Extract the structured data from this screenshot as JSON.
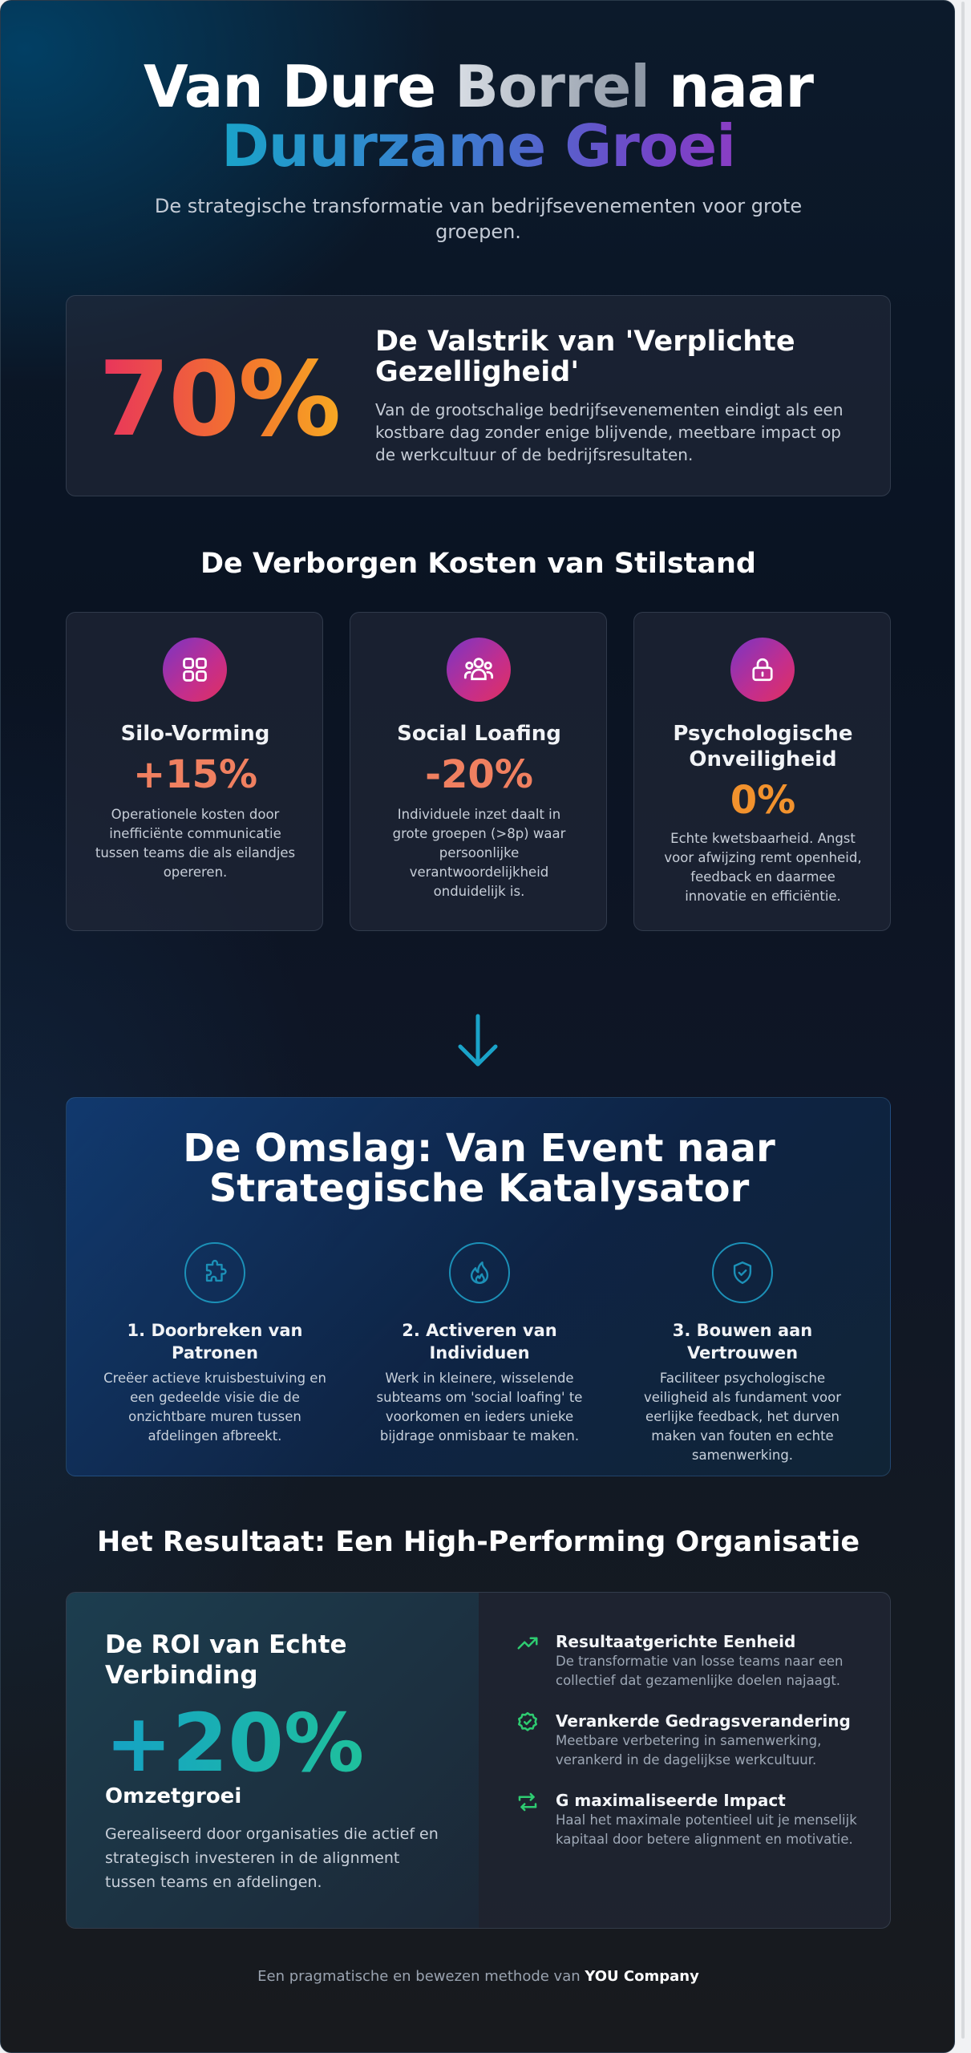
{
  "hero": {
    "title_line1_part1": "Van Dure ",
    "title_line1_part2": "Borrel",
    "title_line1_part3": " naar",
    "title_line2": "Duurzame Groei",
    "subtitle": "De strategische transformatie van bedrijfsevenementen voor grote groepen."
  },
  "trap": {
    "stat": "70%",
    "title": "De Valstrik van 'Verplichte Gezelligheid'",
    "text": "Van de grootschalige bedrijfsevenementen eindigt als een kostbare dag zonder enige blijvende, meetbare impact op de werkcultuur of de bedrijfsresultaten."
  },
  "costs": {
    "title": "De Verborgen Kosten van Stilstand",
    "cards": [
      {
        "icon": "grid-icon",
        "name": "Silo-Vorming",
        "value": "+15%",
        "desc": "Operationele kosten door inefficiënte communicatie tussen teams die als eilandjes opereren."
      },
      {
        "icon": "group-icon",
        "name": "Social Loafing",
        "value": "-20%",
        "desc": "Individuele inzet daalt in grote groepen (>8p) waar persoonlijke verantwoordelijkheid onduidelijk is."
      },
      {
        "icon": "lock-icon",
        "name": "Psychologische Onveiligheid",
        "value": "0%",
        "desc": "Echte kwetsbaarheid. Angst voor afwijzing remt openheid, feedback en daarmee innovatie en efficiëntie."
      }
    ],
    "colors": {
      "value_red": "#f08060",
      "value_orange": "#f2922d"
    }
  },
  "turn": {
    "title": "De Omslag: Van Event naar Strategische Katalysator",
    "steps": [
      {
        "icon": "puzzle-icon",
        "title": "1. Doorbreken van Patronen",
        "desc": "Creëer actieve kruisbestuiving en een gedeelde visie die de onzichtbare muren tussen afdelingen afbreekt."
      },
      {
        "icon": "flame-icon",
        "title": "2. Activeren van Individuen",
        "desc": "Werk in kleinere, wisselende subteams om 'social loafing' te voorkomen en ieders unieke bijdrage onmisbaar te maken."
      },
      {
        "icon": "shield-check-icon",
        "title": "3. Bouwen aan Vertrouwen",
        "desc": "Faciliteer psychologische veiligheid als fundament voor eerlijke feedback, het durven maken van fouten en echte samenwerking."
      }
    ]
  },
  "result": {
    "title": "Het Resultaat: Een High-Performing Organisatie",
    "roi_heading": "De ROI van Echte Verbinding",
    "roi_value": "+20%",
    "roi_label": "Omzetgroei",
    "roi_desc": "Gerealiseerd door organisaties die actief en strategisch investeren in de alignment tussen teams en afdelingen.",
    "benefits": [
      {
        "icon": "trending-up-icon",
        "title": "Resultaatgerichte Eenheid",
        "desc": "De transformatie van losse teams naar een collectief dat gezamenlijke doelen najaagt."
      },
      {
        "icon": "badge-check-icon",
        "title": "Verankerde Gedragsverandering",
        "desc": "Meetbare verbetering in samenwerking, verankerd in de dagelijkse werkcultuur."
      },
      {
        "icon": "arrows-exchange-icon",
        "title": "G maximaliseerde Impact",
        "desc": "Haal het maximale potentieel uit je menselijk kapitaal door betere alignment en motivatie."
      }
    ],
    "accent_green": "#2ecc71"
  },
  "footer": {
    "text": "Een pragmatische en bewezen methode van ",
    "brand": "YOU Company"
  }
}
